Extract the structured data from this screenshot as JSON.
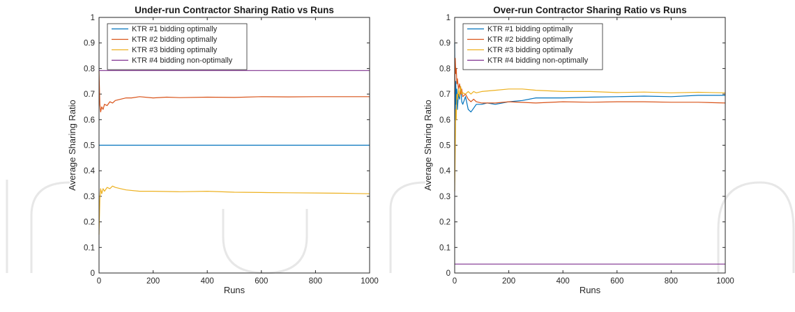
{
  "chart_data": [
    {
      "type": "line",
      "title": "Under-run Contractor Sharing Ratio vs Runs",
      "xlabel": "Runs",
      "ylabel": "Average Sharing Ratio",
      "xlim": [
        0,
        1000
      ],
      "ylim": [
        0,
        1
      ],
      "xticks": [
        "0",
        "200",
        "400",
        "600",
        "800",
        "1000"
      ],
      "yticks": [
        "0",
        "0.1",
        "0.2",
        "0.3",
        "0.4",
        "0.5",
        "0.6",
        "0.7",
        "0.8",
        "0.9",
        "1"
      ],
      "grid": false,
      "legend_position": "top-left",
      "series": [
        {
          "name": "KTR #1 bidding optimally",
          "color": "#0072BD",
          "x": [
            0,
            1000
          ],
          "y": [
            0.5,
            0.5
          ]
        },
        {
          "name": "KTR #2 bidding optimally",
          "color": "#D95319",
          "x": [
            0,
            3,
            6,
            10,
            15,
            20,
            30,
            40,
            50,
            60,
            80,
            100,
            120,
            150,
            200,
            250,
            300,
            400,
            500,
            600,
            700,
            800,
            900,
            1000
          ],
          "y": [
            0.79,
            0.66,
            0.63,
            0.65,
            0.64,
            0.66,
            0.655,
            0.67,
            0.665,
            0.675,
            0.68,
            0.685,
            0.685,
            0.69,
            0.685,
            0.688,
            0.686,
            0.688,
            0.687,
            0.69,
            0.689,
            0.69,
            0.69,
            0.69
          ]
        },
        {
          "name": "KTR #3 bidding optimally",
          "color": "#EDB120",
          "x": [
            0,
            3,
            6,
            10,
            15,
            20,
            30,
            40,
            50,
            60,
            80,
            100,
            150,
            200,
            300,
            400,
            500,
            600,
            700,
            800,
            900,
            1000
          ],
          "y": [
            0.15,
            0.29,
            0.33,
            0.31,
            0.33,
            0.32,
            0.335,
            0.33,
            0.34,
            0.335,
            0.33,
            0.325,
            0.32,
            0.32,
            0.318,
            0.32,
            0.316,
            0.315,
            0.314,
            0.313,
            0.312,
            0.31
          ]
        },
        {
          "name": "KTR #4 bidding non-optimally",
          "color": "#7E2F8E",
          "x": [
            0,
            1000
          ],
          "y": [
            0.792,
            0.792
          ]
        }
      ]
    },
    {
      "type": "line",
      "title": "Over-run Contractor Sharing Ratio vs Runs",
      "xlabel": "Runs",
      "ylabel": "Average Sharing Ratio",
      "xlim": [
        0,
        1000
      ],
      "ylim": [
        0,
        1
      ],
      "xticks": [
        "0",
        "200",
        "400",
        "600",
        "800",
        "1000"
      ],
      "yticks": [
        "0",
        "0.1",
        "0.2",
        "0.3",
        "0.4",
        "0.5",
        "0.6",
        "0.7",
        "0.8",
        "0.9",
        "1"
      ],
      "grid": false,
      "legend_position": "top-left",
      "series": [
        {
          "name": "KTR #1 bidding optimally",
          "color": "#0072BD",
          "x": [
            0,
            2,
            4,
            6,
            8,
            10,
            14,
            18,
            22,
            26,
            30,
            40,
            50,
            60,
            70,
            80,
            100,
            120,
            150,
            200,
            250,
            300,
            400,
            500,
            600,
            700,
            800,
            900,
            1000
          ],
          "y": [
            0.9,
            0.6,
            0.75,
            0.66,
            0.72,
            0.64,
            0.7,
            0.68,
            0.73,
            0.67,
            0.66,
            0.69,
            0.64,
            0.63,
            0.645,
            0.66,
            0.66,
            0.665,
            0.66,
            0.67,
            0.675,
            0.685,
            0.685,
            0.688,
            0.69,
            0.692,
            0.69,
            0.695,
            0.695
          ]
        },
        {
          "name": "KTR #2 bidding optimally",
          "color": "#D95319",
          "x": [
            0,
            2,
            4,
            6,
            8,
            10,
            14,
            18,
            22,
            26,
            30,
            40,
            50,
            60,
            70,
            80,
            100,
            150,
            200,
            300,
            400,
            500,
            600,
            700,
            800,
            900,
            1000
          ],
          "y": [
            0.7,
            0.84,
            0.78,
            0.8,
            0.74,
            0.76,
            0.72,
            0.74,
            0.7,
            0.72,
            0.69,
            0.7,
            0.68,
            0.67,
            0.68,
            0.67,
            0.665,
            0.665,
            0.67,
            0.665,
            0.67,
            0.668,
            0.67,
            0.67,
            0.668,
            0.668,
            0.665
          ]
        },
        {
          "name": "KTR #3 bidding optimally",
          "color": "#EDB120",
          "x": [
            0,
            2,
            4,
            6,
            8,
            10,
            14,
            18,
            22,
            26,
            30,
            40,
            50,
            60,
            70,
            80,
            100,
            150,
            200,
            250,
            300,
            400,
            500,
            600,
            700,
            800,
            900,
            1000
          ],
          "y": [
            0.32,
            0.48,
            0.64,
            0.6,
            0.7,
            0.68,
            0.72,
            0.69,
            0.73,
            0.7,
            0.705,
            0.7,
            0.71,
            0.7,
            0.71,
            0.705,
            0.71,
            0.715,
            0.72,
            0.72,
            0.715,
            0.71,
            0.71,
            0.706,
            0.708,
            0.705,
            0.707,
            0.705
          ]
        },
        {
          "name": "KTR #4 bidding non-optimally",
          "color": "#7E2F8E",
          "x": [
            0,
            1000
          ],
          "y": [
            0.035,
            0.035
          ]
        }
      ]
    }
  ]
}
